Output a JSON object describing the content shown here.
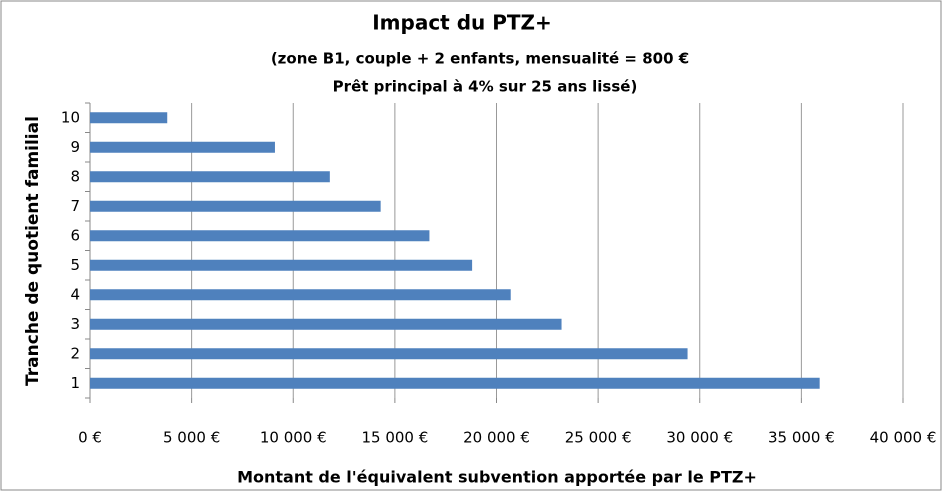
{
  "chart_data": {
    "type": "bar",
    "orientation": "horizontal",
    "title": "Impact du PTZ+",
    "subtitle": [
      "(zone B1, couple + 2 enfants, mensualité = 800 €",
      "Prêt principal à 4% sur 25 ans lissé)"
    ],
    "x_label": "Montant de l'équivalent subvention apportée par le PTZ+",
    "y_label": "Tranche de quotient familial",
    "categories": [
      "1",
      "2",
      "3",
      "4",
      "5",
      "6",
      "7",
      "8",
      "9",
      "10"
    ],
    "values": [
      35900,
      29400,
      23200,
      20700,
      18800,
      16700,
      14300,
      11800,
      9100,
      3800
    ],
    "color": "#4f81bd",
    "xlim": [
      0,
      40000
    ],
    "xticks": [
      {
        "value": 0,
        "label": "0 €"
      },
      {
        "value": 5000,
        "label": "5 000 €"
      },
      {
        "value": 10000,
        "label": "10 000 €"
      },
      {
        "value": 15000,
        "label": "15 000 €"
      },
      {
        "value": 20000,
        "label": "20 000 €"
      },
      {
        "value": 25000,
        "label": "25 000 €"
      },
      {
        "value": 30000,
        "label": "30 000 €"
      },
      {
        "value": 35000,
        "label": "35 000 €"
      },
      {
        "value": 40000,
        "label": "40 000 €"
      }
    ],
    "grid": true
  }
}
